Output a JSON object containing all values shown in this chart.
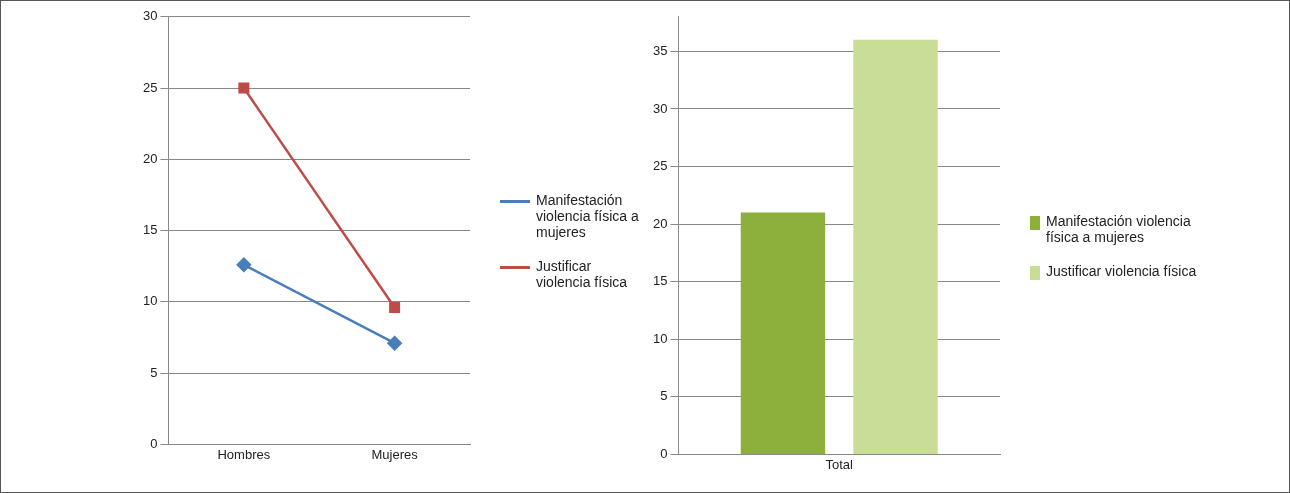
{
  "chart_data": [
    {
      "type": "line",
      "categories": [
        "Hombres",
        "Mujeres"
      ],
      "series": [
        {
          "name": "Manifestación violencia física a mujeres",
          "color": "#4a7ebb",
          "values": [
            12.6,
            7.1
          ],
          "marker": "diamond"
        },
        {
          "name": "Justificar violencia física",
          "color": "#be4b48",
          "values": [
            25,
            9.6
          ],
          "marker": "square"
        }
      ],
      "ylim": [
        0,
        30
      ],
      "yticks": [
        0,
        5,
        10,
        15,
        20,
        25,
        30
      ],
      "grid": "y",
      "legend": "right"
    },
    {
      "type": "bar",
      "categories": [
        "Total"
      ],
      "series": [
        {
          "name": "Manifestación violencia física a mujeres",
          "color": "#8db03c",
          "values": [
            21
          ]
        },
        {
          "name": "Justificar violencia física",
          "color": "#c9dd97",
          "values": [
            36
          ]
        }
      ],
      "ylim": [
        0,
        38
      ],
      "yticks": [
        0,
        5,
        10,
        15,
        20,
        25,
        30,
        35
      ],
      "grid": "y",
      "legend": "right"
    }
  ]
}
